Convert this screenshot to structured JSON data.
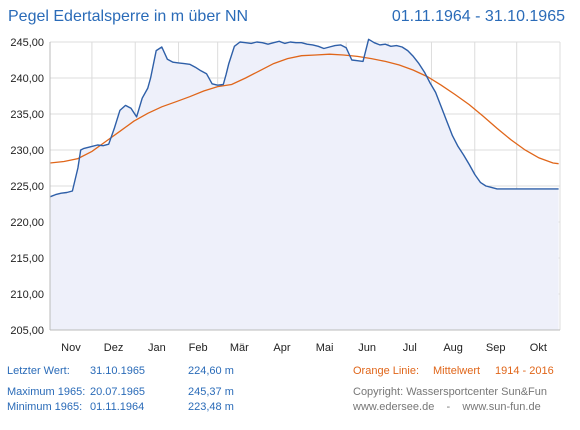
{
  "header": {
    "title": "Pegel Edertalsperre in m über NN",
    "date_range": "01.11.1964 - 31.10.1965"
  },
  "chart_data": {
    "type": "line",
    "title": "Pegel Edertalsperre in m über NN",
    "ylim": [
      205,
      245
    ],
    "yticks": [
      "245,00",
      "240,00",
      "235,00",
      "230,00",
      "225,00",
      "220,00",
      "215,00",
      "210,00",
      "205,00"
    ],
    "ytick_values": [
      245,
      240,
      235,
      230,
      225,
      220,
      215,
      210,
      205
    ],
    "categories": [
      "Nov",
      "Dez",
      "Jan",
      "Feb",
      "Mär",
      "Apr",
      "Mai",
      "Jun",
      "Jul",
      "Aug",
      "Sep",
      "Okt"
    ],
    "grid": true,
    "colors": {
      "level": "#2e5fa8",
      "mean": "#e0661a",
      "fill": "#eef0fa",
      "grid": "#dcdcdc"
    },
    "series": [
      {
        "name": "",
        "x": [
          0,
          4,
          8,
          12,
          16,
          20,
          22,
          24,
          30,
          34,
          38,
          42,
          46,
          50,
          54,
          58,
          62,
          66,
          70,
          72,
          76,
          80,
          84,
          88,
          92,
          96,
          100,
          104,
          108,
          112,
          116,
          120,
          124,
          126,
          128,
          132,
          136,
          140,
          144,
          148,
          152,
          156,
          160,
          164,
          168,
          172,
          176,
          180,
          184,
          188,
          192,
          196,
          200,
          204,
          208,
          212,
          216,
          220,
          224,
          228,
          232,
          236,
          240,
          244,
          248,
          252,
          256,
          260,
          264,
          268,
          272,
          276,
          280,
          284,
          288,
          292,
          296,
          300,
          304,
          308,
          312,
          316,
          320,
          324,
          328,
          332,
          336,
          340,
          344,
          348,
          352,
          356,
          360,
          364
        ],
        "values": [
          223.5,
          223.8,
          224.0,
          224.1,
          224.3,
          227.5,
          230.0,
          230.2,
          230.5,
          230.7,
          230.6,
          230.8,
          233.0,
          235.5,
          236.2,
          235.8,
          234.6,
          237.2,
          238.6,
          240.0,
          243.8,
          244.3,
          242.6,
          242.2,
          242.1,
          242.0,
          241.9,
          241.5,
          241.0,
          240.6,
          239.2,
          239.0,
          239.1,
          240.5,
          242.0,
          244.4,
          245.0,
          244.9,
          244.8,
          245.0,
          244.9,
          244.7,
          244.9,
          245.1,
          244.8,
          245.0,
          244.9,
          244.9,
          244.7,
          244.6,
          244.4,
          244.1,
          244.3,
          244.5,
          244.6,
          244.2,
          242.5,
          242.4,
          242.3,
          245.37,
          244.9,
          244.6,
          244.7,
          244.4,
          244.5,
          244.3,
          243.8,
          243.0,
          242.0,
          240.8,
          239.3,
          238.0,
          236.0,
          234.0,
          232.0,
          230.5,
          229.3,
          228.0,
          226.6,
          225.5,
          225.0,
          224.8,
          224.6,
          224.6,
          224.6,
          224.6,
          224.6,
          224.6,
          224.6,
          224.6,
          224.6,
          224.6,
          224.6,
          224.6
        ]
      },
      {
        "name": "Mittelwert 1914 - 2016",
        "x": [
          0,
          10,
          20,
          30,
          40,
          50,
          60,
          70,
          80,
          90,
          100,
          110,
          120,
          130,
          140,
          150,
          160,
          170,
          180,
          190,
          200,
          210,
          220,
          230,
          240,
          250,
          260,
          270,
          280,
          290,
          300,
          310,
          320,
          330,
          340,
          350,
          360,
          364
        ],
        "values": [
          228.2,
          228.4,
          228.8,
          229.8,
          231.2,
          232.6,
          234.0,
          235.1,
          236.0,
          236.7,
          237.4,
          238.2,
          238.8,
          239.1,
          240.0,
          241.0,
          242.0,
          242.7,
          243.1,
          243.2,
          243.3,
          243.2,
          243.0,
          242.7,
          242.3,
          241.8,
          241.1,
          240.2,
          239.0,
          237.7,
          236.3,
          234.7,
          233.0,
          231.4,
          230.0,
          228.9,
          228.2,
          228.1
        ]
      }
    ]
  },
  "footer": {
    "last_label": "Letzter Wert:",
    "last_date": "31.10.1965",
    "last_value": "224,60 m",
    "max_label": "Maximum 1965:",
    "max_date": "20.07.1965",
    "max_value": "245,37 m",
    "min_label": "Minimum 1965:",
    "min_date": "01.11.1964",
    "min_value": "223,48 m",
    "orange_label": "Orange Linie:",
    "mean_label": "Mittelwert",
    "mean_range": "1914 - 2016",
    "copyright": "Copyright: Wassersportcenter Sun&Fun",
    "links": "www.edersee.de    -    www.sun-fun.de"
  }
}
